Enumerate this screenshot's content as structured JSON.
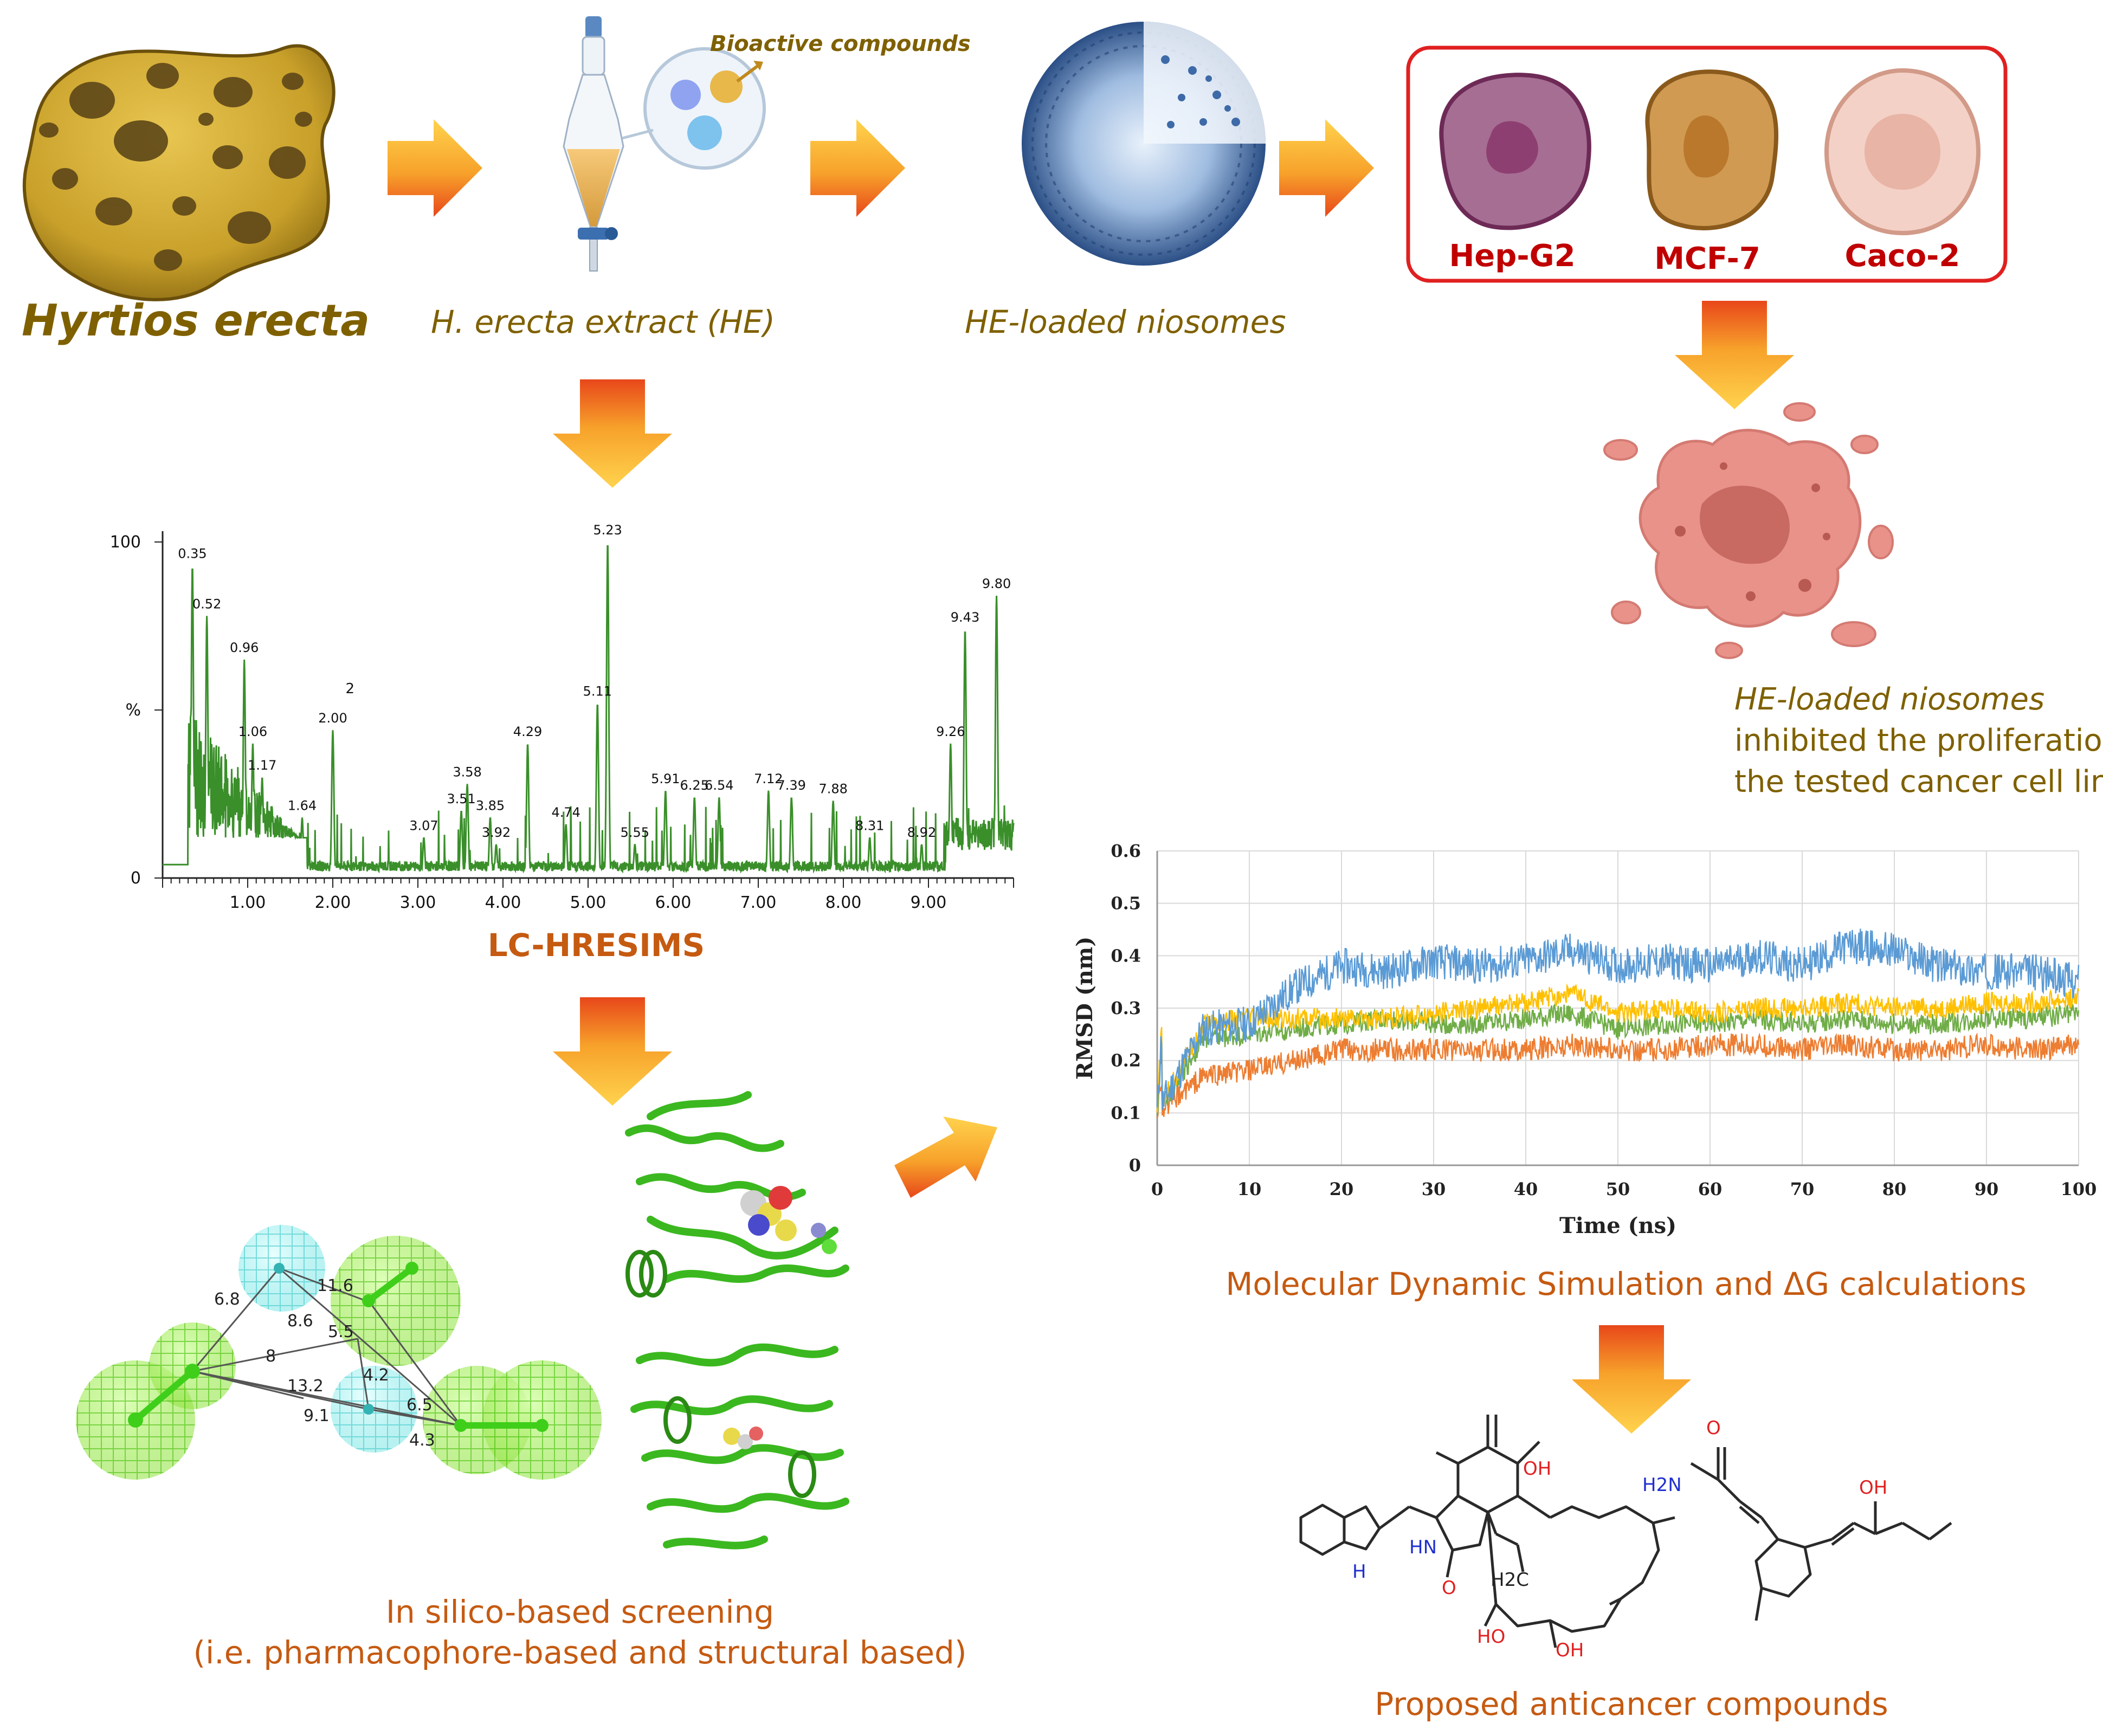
{
  "colors": {
    "arrow_top": "#FFD34D",
    "arrow_bottom": "#E8471A",
    "label_orange": "#C55A11",
    "label_olive": "#7F6000",
    "ms_trace": "#3A8F2A",
    "md_blue": "#5B9BD5",
    "md_orange": "#ED7D31",
    "md_yellow": "#FFC000",
    "md_green": "#70AD47",
    "cell_box": "#E02020"
  },
  "labels": {
    "sponge": "Hyrtios erecta",
    "extract": "H. erecta extract (HE)",
    "bioactive": "Bioactive compounds",
    "niosomes": "HE-loaded niosomes",
    "lcms_title": "LC-HRESIMS",
    "insilico_line1": "In silico-based screening",
    "insilico_line2": "(i.e. pharmacophore-based and structural based)",
    "md_title": "Molecular Dynamic Simulation and ΔG calculations",
    "result_line1": "HE-loaded niosomes",
    "result_line2": "inhibited the proliferation of",
    "result_line3": "the tested cancer cell lines",
    "proposed": "Proposed anticancer compounds"
  },
  "cells": [
    {
      "name": "Hep-G2",
      "fill": "#A66E93",
      "nucleus": "#8E3F71",
      "stroke": "#6E2A57"
    },
    {
      "name": "MCF-7",
      "fill": "#D09A52",
      "nucleus": "#B9782C",
      "stroke": "#8A5A1C"
    },
    {
      "name": "Caco-2",
      "fill": "#F4D1C6",
      "nucleus": "#E8B4A5",
      "stroke": "#D29A88"
    }
  ],
  "pharmacophore_distances": [
    "6.8",
    "11.6",
    "8.6",
    "5.5",
    "8",
    "4.2",
    "13.2",
    "6.5",
    "9.1",
    "4.3"
  ],
  "chem_labels": {
    "oh": "OH",
    "hn": "HN",
    "h": "H",
    "o": "O",
    "h2c": "H2C",
    "ho": "HO",
    "h2n": "H2N"
  },
  "chart_data": [
    {
      "type": "line",
      "title": "LC-HRESIMS",
      "xlabel": "",
      "ylabel": "%",
      "xlim": [
        0,
        10
      ],
      "ylim": [
        0,
        100
      ],
      "x_ticks": [
        "1.00",
        "2.00",
        "3.00",
        "4.00",
        "5.00",
        "6.00",
        "7.00",
        "8.00",
        "9.00"
      ],
      "y_ticks": [
        "100",
        "%",
        "0"
      ],
      "extra_label": "2",
      "peaks": [
        {
          "rt": 0.35,
          "label": "0.35",
          "intensity": 93
        },
        {
          "rt": 0.52,
          "label": "0.52",
          "intensity": 78
        },
        {
          "rt": 0.96,
          "label": "0.96",
          "intensity": 65
        },
        {
          "rt": 1.06,
          "label": "1.06",
          "intensity": 40
        },
        {
          "rt": 1.17,
          "label": "1.17",
          "intensity": 30
        },
        {
          "rt": 1.64,
          "label": "1.64",
          "intensity": 18
        },
        {
          "rt": 2.0,
          "label": "2.00",
          "intensity": 44
        },
        {
          "rt": 3.07,
          "label": "3.07",
          "intensity": 12
        },
        {
          "rt": 3.51,
          "label": "3.51",
          "intensity": 20
        },
        {
          "rt": 3.58,
          "label": "3.58",
          "intensity": 28
        },
        {
          "rt": 3.85,
          "label": "3.85",
          "intensity": 18
        },
        {
          "rt": 3.92,
          "label": "3.92",
          "intensity": 10
        },
        {
          "rt": 4.29,
          "label": "4.29",
          "intensity": 40
        },
        {
          "rt": 4.74,
          "label": "4.74",
          "intensity": 16
        },
        {
          "rt": 5.11,
          "label": "5.11",
          "intensity": 52
        },
        {
          "rt": 5.23,
          "label": "5.23",
          "intensity": 100
        },
        {
          "rt": 5.55,
          "label": "5.55",
          "intensity": 10
        },
        {
          "rt": 5.91,
          "label": "5.91",
          "intensity": 26
        },
        {
          "rt": 6.25,
          "label": "6.25",
          "intensity": 24
        },
        {
          "rt": 6.54,
          "label": "6.54",
          "intensity": 24
        },
        {
          "rt": 7.12,
          "label": "7.12",
          "intensity": 26
        },
        {
          "rt": 7.39,
          "label": "7.39",
          "intensity": 24
        },
        {
          "rt": 7.88,
          "label": "7.88",
          "intensity": 23
        },
        {
          "rt": 8.31,
          "label": "8.31",
          "intensity": 12
        },
        {
          "rt": 8.92,
          "label": "8.92",
          "intensity": 10
        },
        {
          "rt": 9.26,
          "label": "9.26",
          "intensity": 40
        },
        {
          "rt": 9.43,
          "label": "9.43",
          "intensity": 74
        },
        {
          "rt": 9.8,
          "label": "9.80",
          "intensity": 84
        }
      ]
    },
    {
      "type": "line",
      "title": "",
      "xlabel": "Time (ns)",
      "ylabel": "RMSD (nm)",
      "xlim": [
        0,
        100
      ],
      "ylim": [
        0,
        0.6
      ],
      "x_ticks": [
        "0",
        "10",
        "20",
        "30",
        "40",
        "50",
        "60",
        "70",
        "80",
        "90",
        "100"
      ],
      "y_ticks": [
        "0",
        "0.1",
        "0.2",
        "0.3",
        "0.4",
        "0.5",
        "0.6"
      ],
      "grid": true,
      "series": [
        {
          "name": "blue",
          "color": "#5B9BD5",
          "x": [
            0,
            5,
            10,
            15,
            20,
            25,
            30,
            35,
            40,
            45,
            50,
            55,
            60,
            65,
            70,
            75,
            80,
            85,
            90,
            95,
            100
          ],
          "values": [
            0.1,
            0.26,
            0.27,
            0.34,
            0.38,
            0.37,
            0.39,
            0.38,
            0.39,
            0.41,
            0.38,
            0.39,
            0.38,
            0.4,
            0.38,
            0.42,
            0.41,
            0.38,
            0.37,
            0.37,
            0.35
          ]
        },
        {
          "name": "yellow",
          "color": "#FFC000",
          "x": [
            0,
            5,
            10,
            15,
            20,
            25,
            30,
            35,
            40,
            45,
            50,
            55,
            60,
            65,
            70,
            75,
            80,
            85,
            90,
            95,
            100
          ],
          "values": [
            0.1,
            0.27,
            0.28,
            0.28,
            0.28,
            0.28,
            0.29,
            0.3,
            0.31,
            0.33,
            0.29,
            0.3,
            0.29,
            0.3,
            0.3,
            0.31,
            0.3,
            0.3,
            0.31,
            0.31,
            0.32
          ]
        },
        {
          "name": "green",
          "color": "#70AD47",
          "x": [
            0,
            5,
            10,
            15,
            20,
            25,
            30,
            35,
            40,
            45,
            50,
            55,
            60,
            65,
            70,
            75,
            80,
            85,
            90,
            95,
            100
          ],
          "values": [
            0.1,
            0.24,
            0.25,
            0.26,
            0.27,
            0.28,
            0.27,
            0.27,
            0.28,
            0.29,
            0.26,
            0.27,
            0.27,
            0.28,
            0.27,
            0.28,
            0.27,
            0.27,
            0.28,
            0.28,
            0.29
          ]
        },
        {
          "name": "orange",
          "color": "#ED7D31",
          "x": [
            0,
            5,
            10,
            15,
            20,
            25,
            30,
            35,
            40,
            45,
            50,
            55,
            60,
            65,
            70,
            75,
            80,
            85,
            90,
            95,
            100
          ],
          "values": [
            0.1,
            0.17,
            0.18,
            0.2,
            0.22,
            0.22,
            0.22,
            0.22,
            0.22,
            0.23,
            0.22,
            0.22,
            0.23,
            0.23,
            0.22,
            0.23,
            0.22,
            0.22,
            0.23,
            0.22,
            0.23
          ]
        }
      ]
    }
  ]
}
